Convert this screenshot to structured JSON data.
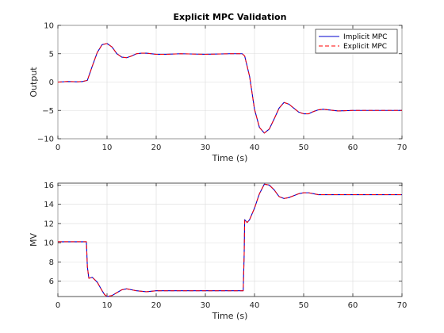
{
  "colors": {
    "implicit": "#0000cc",
    "explicit": "#ff0000",
    "grid": "#dcdcdc",
    "axes": "#262626"
  },
  "chart_data": [
    {
      "type": "line",
      "title": "Explicit MPC Validation",
      "xlabel": "Time (s)",
      "ylabel": "Output",
      "xlim": [
        0,
        70
      ],
      "ylim": [
        -10,
        10
      ],
      "xticks": [
        0,
        10,
        20,
        30,
        40,
        50,
        60,
        70
      ],
      "yticks": [
        -10,
        -5,
        0,
        5,
        10
      ],
      "grid": true,
      "legend": {
        "position": "top-right",
        "entries": [
          "Implicit MPC",
          "Explicit MPC"
        ]
      },
      "series": [
        {
          "name": "Implicit MPC",
          "style": "solid",
          "x": [
            0,
            2,
            4,
            5,
            6,
            7,
            8,
            9,
            10,
            11,
            12,
            13,
            14,
            15,
            16,
            17,
            18,
            20,
            22,
            25,
            30,
            35,
            37.5,
            38,
            39,
            40,
            41,
            42,
            43,
            44,
            45,
            46,
            47,
            48,
            49,
            50,
            51,
            52,
            53,
            54,
            55,
            57,
            60,
            65,
            70
          ],
          "y": [
            0,
            0.1,
            0.05,
            0.1,
            0.3,
            2.8,
            5.2,
            6.6,
            6.8,
            6.2,
            5.0,
            4.4,
            4.3,
            4.6,
            5.0,
            5.1,
            5.1,
            4.9,
            4.9,
            5.0,
            4.9,
            5.0,
            5.0,
            4.6,
            1.0,
            -4.8,
            -8.0,
            -9.0,
            -8.3,
            -6.5,
            -4.6,
            -3.6,
            -3.9,
            -4.6,
            -5.3,
            -5.6,
            -5.6,
            -5.2,
            -4.9,
            -4.8,
            -4.9,
            -5.1,
            -5.0,
            -5.0,
            -5.0
          ]
        },
        {
          "name": "Explicit MPC",
          "style": "dashed",
          "x": [
            0,
            2,
            4,
            5,
            6,
            7,
            8,
            9,
            10,
            11,
            12,
            13,
            14,
            15,
            16,
            17,
            18,
            20,
            22,
            25,
            30,
            35,
            37.5,
            38,
            39,
            40,
            41,
            42,
            43,
            44,
            45,
            46,
            47,
            48,
            49,
            50,
            51,
            52,
            53,
            54,
            55,
            57,
            60,
            65,
            70
          ],
          "y": [
            0,
            0.1,
            0.05,
            0.1,
            0.3,
            2.8,
            5.2,
            6.6,
            6.8,
            6.2,
            5.0,
            4.4,
            4.3,
            4.6,
            5.0,
            5.1,
            5.1,
            4.9,
            4.9,
            5.0,
            4.9,
            5.0,
            5.0,
            4.6,
            1.0,
            -4.8,
            -8.0,
            -9.0,
            -8.3,
            -6.5,
            -4.6,
            -3.6,
            -3.9,
            -4.6,
            -5.3,
            -5.6,
            -5.6,
            -5.2,
            -4.9,
            -4.8,
            -4.9,
            -5.1,
            -5.0,
            -5.0,
            -5.0
          ]
        }
      ]
    },
    {
      "type": "line",
      "title": "",
      "xlabel": "Time (s)",
      "ylabel": "MV",
      "xlim": [
        0,
        70
      ],
      "ylim": [
        4.4,
        16.2
      ],
      "xticks": [
        0,
        10,
        20,
        30,
        40,
        50,
        60,
        70
      ],
      "yticks": [
        6,
        8,
        10,
        12,
        14,
        16
      ],
      "grid": true,
      "series": [
        {
          "name": "Implicit MPC",
          "style": "solid",
          "x": [
            0,
            3,
            5.8,
            6,
            6.3,
            7,
            8,
            9,
            9.5,
            10,
            11,
            12,
            13,
            14,
            15,
            16,
            18,
            20,
            22,
            25,
            30,
            35,
            37.7,
            37.9,
            38,
            38.5,
            39,
            40,
            41,
            42,
            43,
            44,
            45,
            46,
            47,
            48,
            49,
            50,
            51,
            52,
            53,
            54,
            56,
            60,
            65,
            70
          ],
          "y": [
            10.1,
            10.1,
            10.1,
            7.5,
            6.3,
            6.4,
            5.9,
            5.0,
            4.6,
            4.4,
            4.5,
            4.8,
            5.1,
            5.2,
            5.1,
            5.0,
            4.9,
            5.0,
            5.0,
            5.0,
            5.0,
            5.0,
            5.0,
            8.8,
            12.4,
            12.1,
            12.4,
            13.6,
            15.1,
            16.1,
            16.0,
            15.5,
            14.8,
            14.6,
            14.7,
            14.9,
            15.1,
            15.2,
            15.2,
            15.1,
            15.0,
            15.0,
            15.0,
            15.0,
            15.0,
            15.0
          ]
        },
        {
          "name": "Explicit MPC",
          "style": "dashed",
          "x": [
            0,
            3,
            5.8,
            6,
            6.3,
            7,
            8,
            9,
            9.5,
            10,
            11,
            12,
            13,
            14,
            15,
            16,
            18,
            20,
            22,
            25,
            30,
            35,
            37.7,
            37.9,
            38,
            38.5,
            39,
            40,
            41,
            42,
            43,
            44,
            45,
            46,
            47,
            48,
            49,
            50,
            51,
            52,
            53,
            54,
            56,
            60,
            65,
            70
          ],
          "y": [
            10.1,
            10.1,
            10.1,
            7.5,
            6.3,
            6.4,
            5.9,
            5.0,
            4.6,
            4.4,
            4.5,
            4.8,
            5.1,
            5.2,
            5.1,
            5.0,
            4.9,
            5.0,
            5.0,
            5.0,
            5.0,
            5.0,
            5.0,
            8.8,
            12.4,
            12.1,
            12.4,
            13.6,
            15.1,
            16.1,
            16.0,
            15.5,
            14.8,
            14.6,
            14.7,
            14.9,
            15.1,
            15.2,
            15.2,
            15.1,
            15.0,
            15.0,
            15.0,
            15.0,
            15.0,
            15.0
          ]
        }
      ]
    }
  ]
}
